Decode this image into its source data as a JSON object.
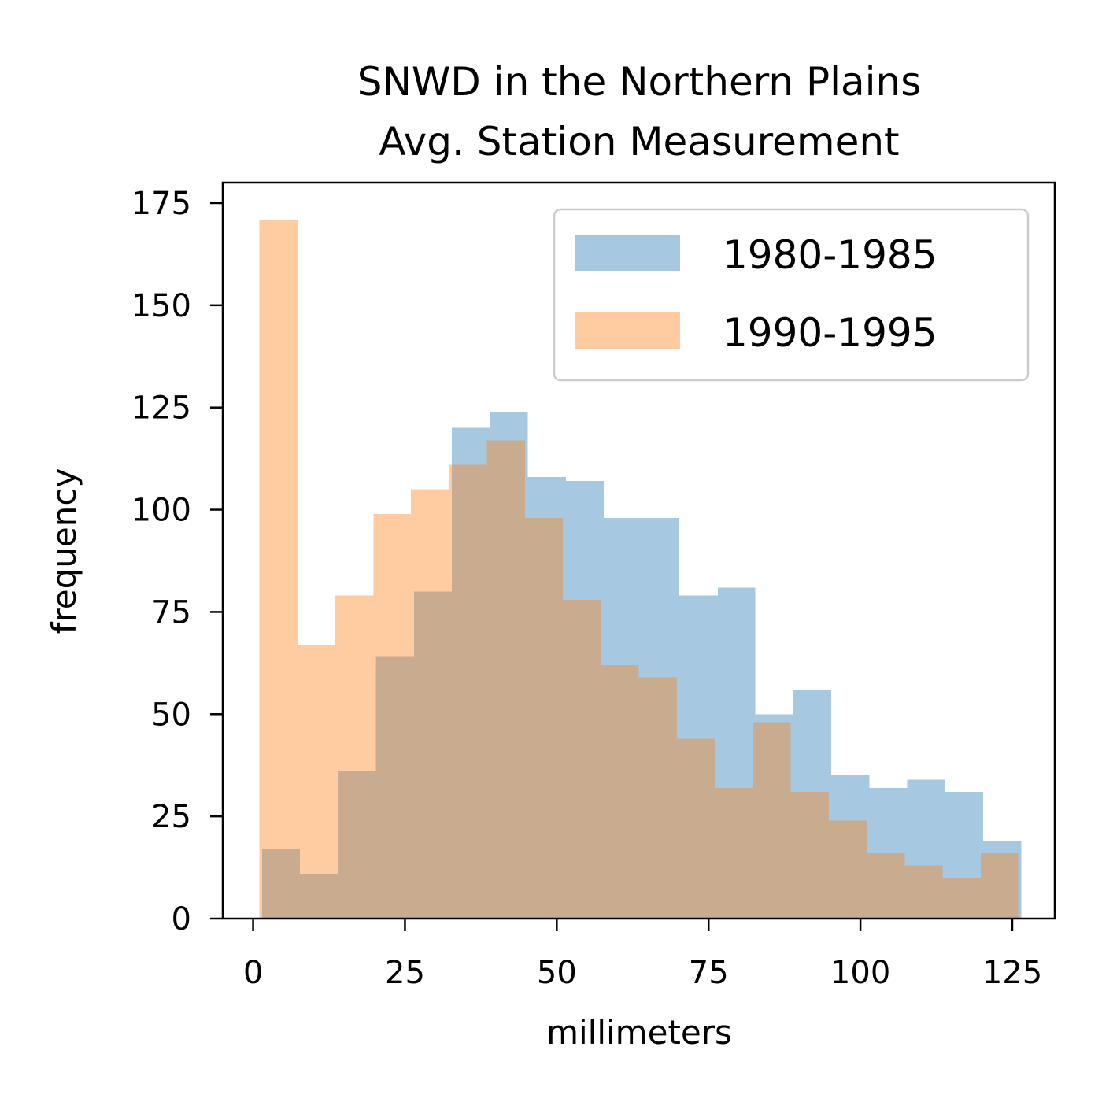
{
  "chart_data": {
    "type": "bar",
    "title": [
      "SNWD in the Northern Plains",
      "Avg. Station Measurement"
    ],
    "xlabel": "millimeters",
    "ylabel": "frequency",
    "xlim": [
      -5,
      132
    ],
    "ylim": [
      0,
      180
    ],
    "xticks": [
      0,
      25,
      50,
      75,
      100,
      125
    ],
    "yticks": [
      0,
      25,
      50,
      75,
      100,
      125,
      150,
      175
    ],
    "grid": false,
    "legend_position": "top-right",
    "series": [
      {
        "name": "1980-1985",
        "color": "#a6c8e0",
        "bin_edges": [
          1.5,
          7.7,
          14.0,
          20.2,
          26.5,
          32.7,
          39.0,
          45.2,
          51.5,
          57.7,
          64.0,
          70.2,
          76.5,
          82.7,
          89.0,
          95.2,
          101.5,
          107.7,
          114.0,
          120.2,
          126.5
        ],
        "values": [
          17,
          11,
          36,
          64,
          80,
          120,
          124,
          108,
          107,
          98,
          98,
          79,
          81,
          50,
          56,
          35,
          32,
          34,
          31,
          19
        ]
      },
      {
        "name": "1990-1995",
        "color": "#fecca0",
        "bin_edges": [
          1.0,
          7.3,
          13.5,
          19.8,
          26.0,
          32.3,
          38.5,
          44.8,
          51.0,
          57.3,
          63.5,
          69.8,
          76.0,
          82.3,
          88.5,
          94.8,
          101.0,
          107.3,
          113.5,
          119.8,
          126.0
        ],
        "values": [
          171,
          67,
          79,
          99,
          105,
          111,
          117,
          98,
          78,
          62,
          59,
          44,
          32,
          48,
          31,
          24,
          16,
          13,
          10,
          16
        ]
      }
    ],
    "overlap_color": "#c9ac8f"
  }
}
